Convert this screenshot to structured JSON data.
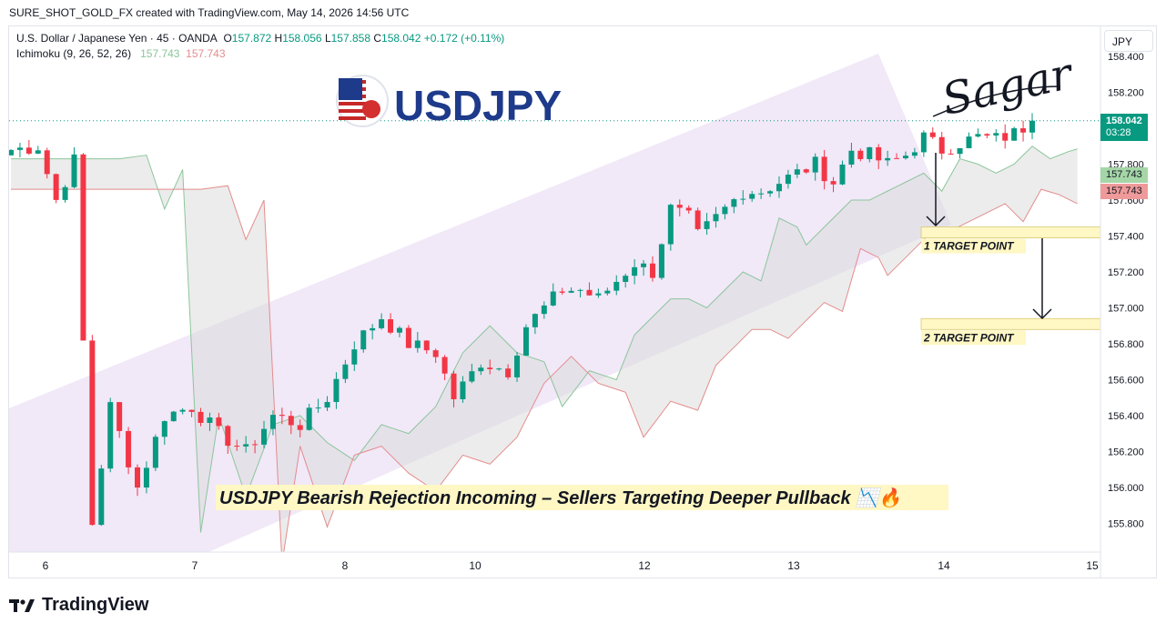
{
  "header": {
    "text": "SURE_SHOT_GOLD_FX created with TradingView.com, May 14, 2026 14:56 UTC"
  },
  "legend": {
    "symbol": "U.S. Dollar / Japanese Yen · 45 · OANDA",
    "open_label": "O",
    "open": "157.872",
    "high_label": "H",
    "high": "158.056",
    "low_label": "L",
    "low": "157.858",
    "close_label": "C",
    "close": "158.042",
    "change": "+0.172 (+0.11%)",
    "indicator": "Ichimoku (9, 26, 52, 26)",
    "indicator_v1": "157.743",
    "indicator_v2": "157.743"
  },
  "currency_button": "JPY",
  "logo_text": "USDJPY",
  "signature": "Sagar",
  "footer_brand": "TradingView",
  "price_tags": {
    "last": "158.042",
    "countdown": "03:28",
    "span_a": "157.743",
    "span_b": "157.743"
  },
  "colors": {
    "up": "#089981",
    "down": "#f23645",
    "channel": "#e8d9f3",
    "cloud_green": "#e4f1e4",
    "cloud_red": "#f7dde0",
    "target_fill": "#fff7c4"
  },
  "chart_data": {
    "type": "candlestick",
    "title": "USDJPY Bearish Rejection Incoming – Sellers Targeting Deeper Pullback 📉🔥",
    "x_tick_labels": [
      "6",
      "7",
      "8",
      "10",
      "12",
      "13",
      "14",
      "15"
    ],
    "y_tick_labels": [
      "158.400",
      "158.200",
      "158.000",
      "157.800",
      "157.600",
      "157.400",
      "157.200",
      "157.000",
      "156.800",
      "156.600",
      "156.400",
      "156.200",
      "156.000",
      "155.800"
    ],
    "ylim": [
      155.65,
      158.45
    ],
    "last_price": 158.042,
    "annotations": [
      {
        "label": "1 TARGET POINT",
        "price": 157.42
      },
      {
        "label": "2 TARGET POINT",
        "price": 156.91
      }
    ],
    "price_path": [
      [
        0,
        157.88
      ],
      [
        3,
        157.9
      ],
      [
        5,
        157.6
      ],
      [
        7,
        157.82
      ],
      [
        9,
        155.8
      ],
      [
        11,
        156.45
      ],
      [
        14,
        156.0
      ],
      [
        17,
        156.4
      ],
      [
        20,
        156.45
      ],
      [
        23,
        156.3
      ],
      [
        26,
        156.2
      ],
      [
        29,
        156.4
      ],
      [
        32,
        156.35
      ],
      [
        35,
        156.5
      ],
      [
        38,
        156.8
      ],
      [
        41,
        156.95
      ],
      [
        44,
        156.8
      ],
      [
        47,
        156.75
      ],
      [
        49,
        156.5
      ],
      [
        52,
        156.7
      ],
      [
        55,
        156.65
      ],
      [
        57,
        156.9
      ],
      [
        59,
        157.0
      ],
      [
        61,
        157.1
      ],
      [
        63,
        157.1
      ],
      [
        65,
        157.05
      ],
      [
        67,
        157.15
      ],
      [
        69,
        157.25
      ],
      [
        71,
        157.2
      ],
      [
        73,
        157.55
      ],
      [
        75,
        157.5
      ],
      [
        76,
        157.4
      ],
      [
        78,
        157.5
      ],
      [
        81,
        157.65
      ],
      [
        83,
        157.65
      ],
      [
        85,
        157.7
      ],
      [
        87,
        157.75
      ],
      [
        89,
        157.8
      ],
      [
        91,
        157.7
      ],
      [
        93,
        157.88
      ],
      [
        95,
        157.85
      ],
      [
        97,
        157.8
      ],
      [
        99,
        157.85
      ],
      [
        101,
        157.95
      ],
      [
        103,
        157.88
      ],
      [
        105,
        157.92
      ],
      [
        107,
        157.95
      ],
      [
        109,
        157.94
      ],
      [
        111,
        157.97
      ],
      [
        113,
        158.042
      ]
    ]
  }
}
